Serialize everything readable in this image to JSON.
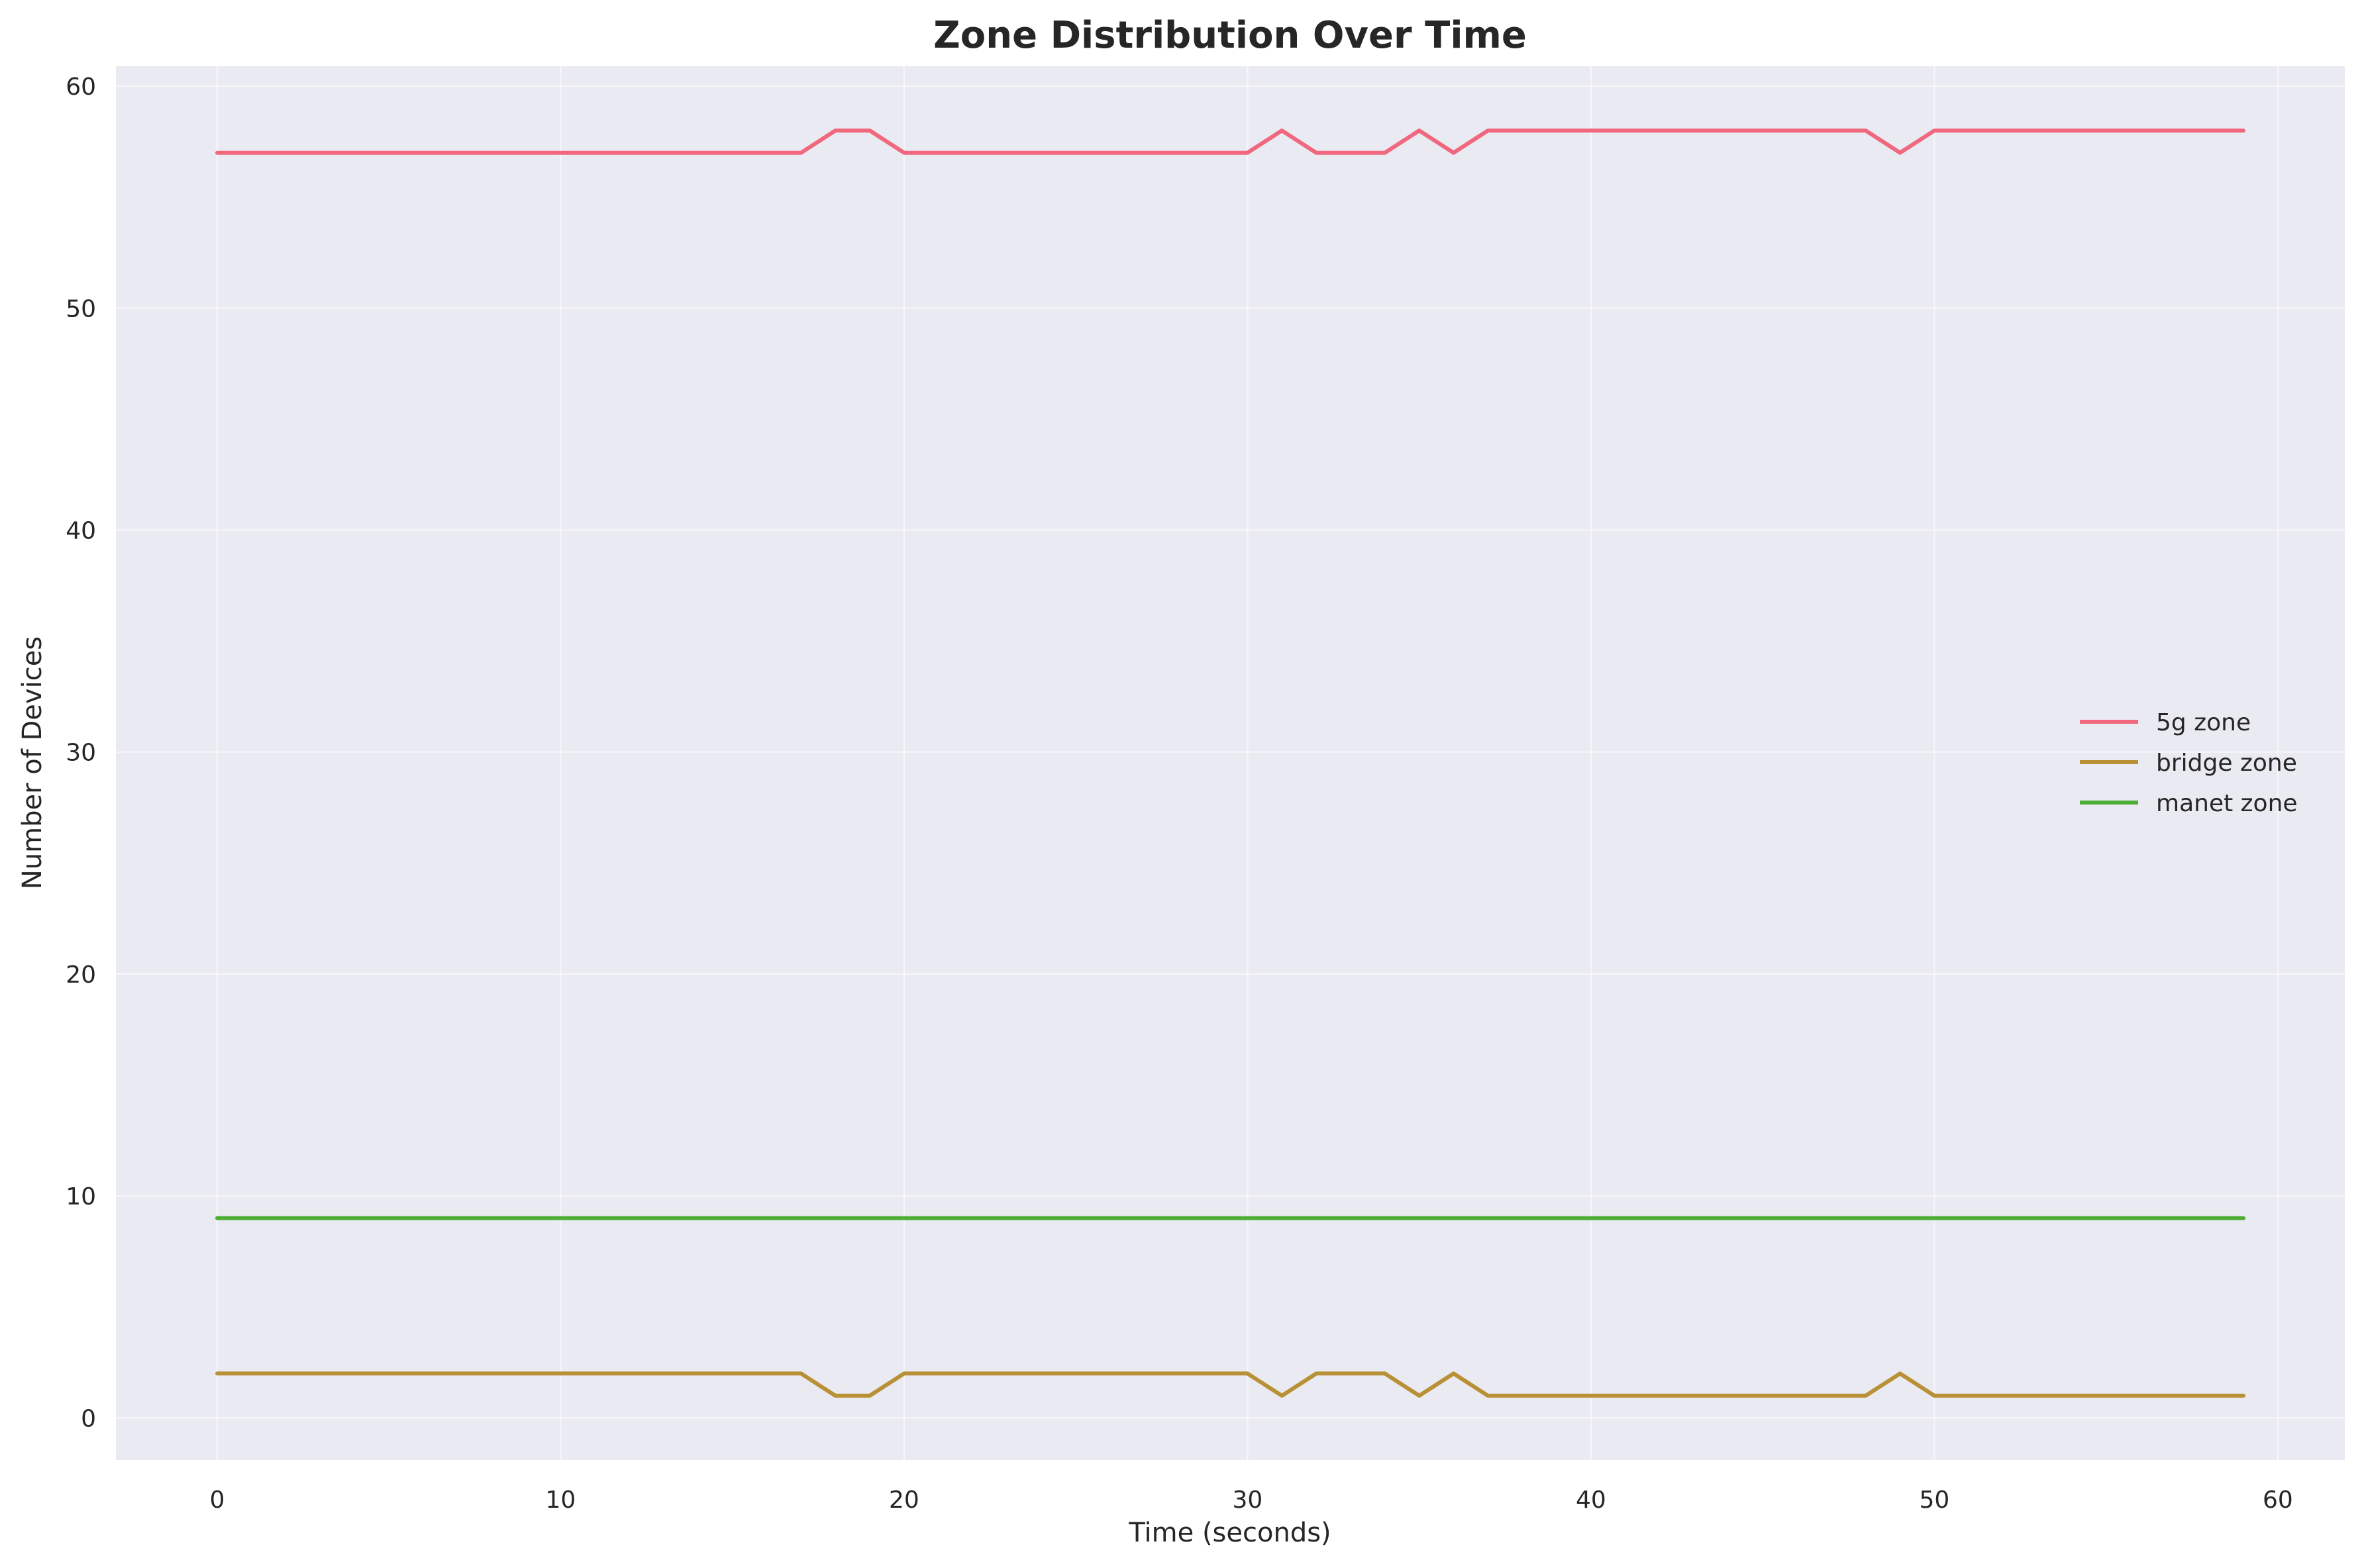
{
  "chart_data": {
    "type": "line",
    "title": "Zone Distribution Over Time",
    "xlabel": "Time (seconds)",
    "ylabel": "Number of Devices",
    "xlim": [
      -2.95,
      61.95
    ],
    "ylim": [
      -1.9,
      60.9
    ],
    "x_ticks": [
      0,
      10,
      20,
      30,
      40,
      50,
      60
    ],
    "y_ticks": [
      0,
      10,
      20,
      30,
      40,
      50,
      60
    ],
    "grid": true,
    "background": "#eaeaf2",
    "legend_position": "center-right",
    "x": [
      0,
      1,
      2,
      3,
      4,
      5,
      6,
      7,
      8,
      9,
      10,
      11,
      12,
      13,
      14,
      15,
      16,
      17,
      18,
      19,
      20,
      21,
      22,
      23,
      24,
      25,
      26,
      27,
      28,
      29,
      30,
      31,
      32,
      33,
      34,
      35,
      36,
      37,
      38,
      39,
      40,
      41,
      42,
      43,
      44,
      45,
      46,
      47,
      48,
      49,
      50,
      51,
      52,
      53,
      54,
      55,
      56,
      57,
      58,
      59
    ],
    "series": [
      {
        "name": "5g zone",
        "color": "#f0677e",
        "values": [
          57,
          57,
          57,
          57,
          57,
          57,
          57,
          57,
          57,
          57,
          57,
          57,
          57,
          57,
          57,
          57,
          57,
          57,
          58,
          58,
          57,
          57,
          57,
          57,
          57,
          57,
          57,
          57,
          57,
          57,
          57,
          58,
          57,
          57,
          57,
          58,
          57,
          58,
          58,
          58,
          58,
          58,
          58,
          58,
          58,
          58,
          58,
          58,
          58,
          57,
          58,
          58,
          58,
          58,
          58,
          58,
          58,
          58,
          58,
          58
        ]
      },
      {
        "name": "bridge zone",
        "color": "#b89137",
        "values": [
          2,
          2,
          2,
          2,
          2,
          2,
          2,
          2,
          2,
          2,
          2,
          2,
          2,
          2,
          2,
          2,
          2,
          2,
          1,
          1,
          2,
          2,
          2,
          2,
          2,
          2,
          2,
          2,
          2,
          2,
          2,
          1,
          2,
          2,
          2,
          1,
          2,
          1,
          1,
          1,
          1,
          1,
          1,
          1,
          1,
          1,
          1,
          1,
          1,
          2,
          1,
          1,
          1,
          1,
          1,
          1,
          1,
          1,
          1,
          1
        ]
      },
      {
        "name": "manet zone",
        "color": "#4ead33",
        "values": [
          9,
          9,
          9,
          9,
          9,
          9,
          9,
          9,
          9,
          9,
          9,
          9,
          9,
          9,
          9,
          9,
          9,
          9,
          9,
          9,
          9,
          9,
          9,
          9,
          9,
          9,
          9,
          9,
          9,
          9,
          9,
          9,
          9,
          9,
          9,
          9,
          9,
          9,
          9,
          9,
          9,
          9,
          9,
          9,
          9,
          9,
          9,
          9,
          9,
          9,
          9,
          9,
          9,
          9,
          9,
          9,
          9,
          9,
          9,
          9
        ]
      }
    ]
  }
}
